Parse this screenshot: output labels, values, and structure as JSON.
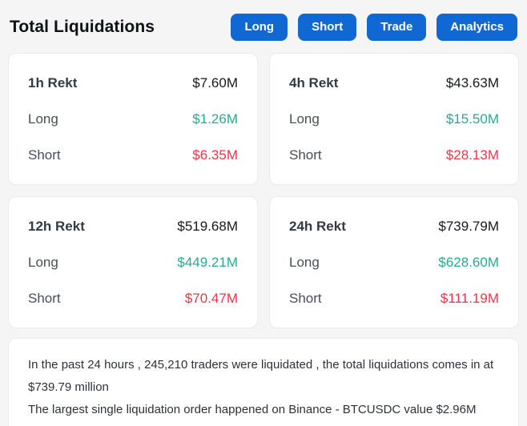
{
  "header": {
    "title": "Total Liquidations",
    "buttons": [
      {
        "label": "Long"
      },
      {
        "label": "Short"
      },
      {
        "label": "Trade"
      },
      {
        "label": "Analytics"
      }
    ]
  },
  "cards": [
    {
      "period": "1h Rekt",
      "total": "$7.60M",
      "long_label": "Long",
      "long_value": "$1.26M",
      "short_label": "Short",
      "short_value": "$6.35M"
    },
    {
      "period": "4h Rekt",
      "total": "$43.63M",
      "long_label": "Long",
      "long_value": "$15.50M",
      "short_label": "Short",
      "short_value": "$28.13M"
    },
    {
      "period": "12h Rekt",
      "total": "$519.68M",
      "long_label": "Long",
      "long_value": "$449.21M",
      "short_label": "Short",
      "short_value": "$70.47M"
    },
    {
      "period": "24h Rekt",
      "total": "$739.79M",
      "long_label": "Long",
      "long_value": "$628.60M",
      "short_label": "Short",
      "short_value": "$111.19M"
    }
  ],
  "summary": {
    "line1": "In the past 24 hours , 245,210 traders were liquidated , the total liquidations comes in at $739.79 million",
    "line2": "The largest single liquidation order happened on Binance - BTCUSDC value $2.96M"
  },
  "colors": {
    "accent": "#1168d2",
    "green": "#25ab8f",
    "red": "#ef3248",
    "bg": "#f5f5f6"
  }
}
